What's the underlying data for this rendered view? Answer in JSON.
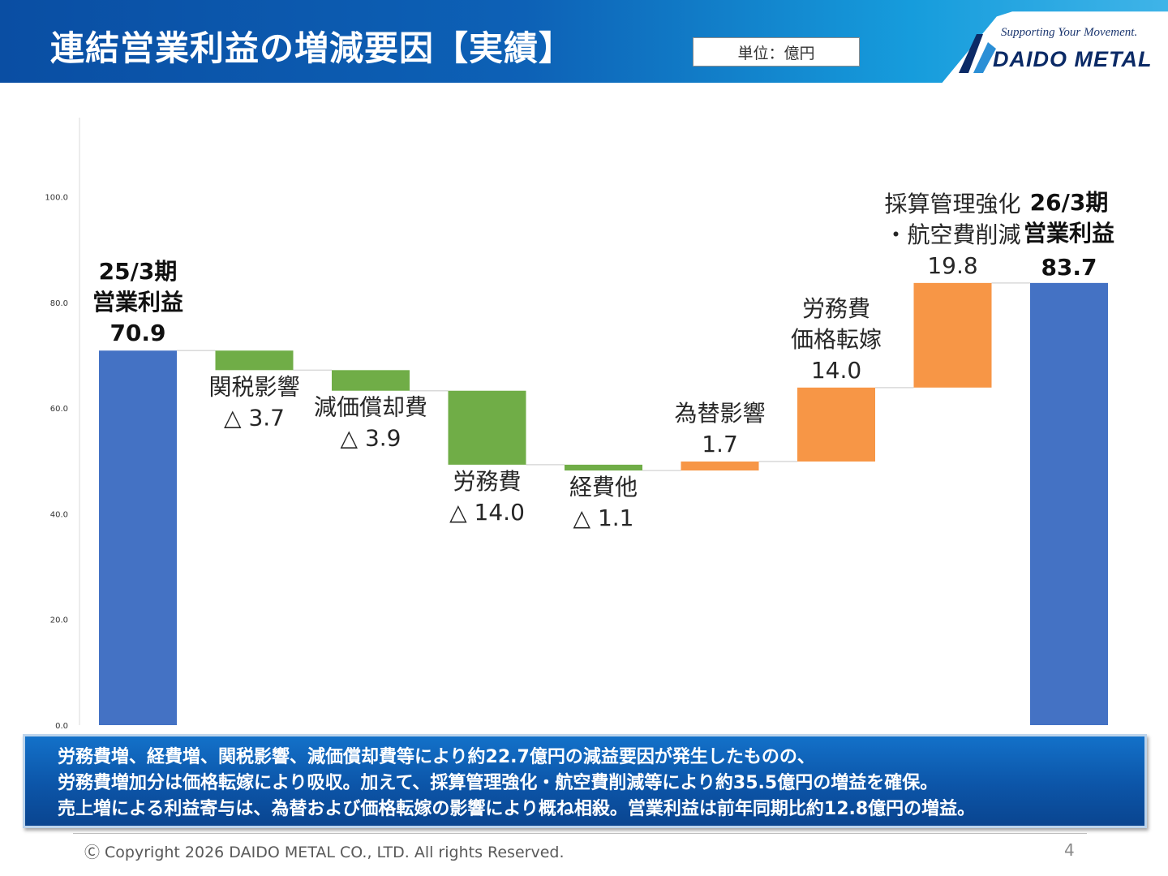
{
  "header": {
    "title": "連結営業利益の増減要因【実績】",
    "unit": "単位：億円",
    "logo_tagline": "Supporting Your Movement.",
    "logo_text": "DAIDO METAL",
    "logo_icon": "daido-metal-logo-icon"
  },
  "chart_data": {
    "type": "waterfall",
    "ylim": [
      0,
      115
    ],
    "yticks": [
      "0.0",
      "20.0",
      "40.0",
      "60.0",
      "80.0",
      "100.0"
    ],
    "colors": {
      "total": "#4472c4",
      "decrease": "#70ad47",
      "increase": "#f79646"
    },
    "steps": [
      {
        "kind": "total",
        "value": 70.9,
        "label_lines": [
          "25/3期",
          "営業利益",
          "70.9"
        ]
      },
      {
        "kind": "decrease",
        "value": -3.7,
        "label_lines": [
          "関税影響",
          "△ 3.7"
        ]
      },
      {
        "kind": "decrease",
        "value": -3.9,
        "label_lines": [
          "減価償却費",
          "△ 3.9"
        ]
      },
      {
        "kind": "decrease",
        "value": -14.0,
        "label_lines": [
          "労務費",
          "△ 14.0"
        ]
      },
      {
        "kind": "decrease",
        "value": -1.1,
        "label_lines": [
          "経費他",
          "△ 1.1"
        ]
      },
      {
        "kind": "increase",
        "value": 1.7,
        "label_lines": [
          "為替影響",
          "1.7"
        ]
      },
      {
        "kind": "increase",
        "value": 14.0,
        "label_lines": [
          "労務費",
          "価格転嫁",
          "14.0"
        ]
      },
      {
        "kind": "increase",
        "value": 19.8,
        "label_lines": [
          "採算管理強化",
          "・航空費削減",
          "19.8"
        ]
      },
      {
        "kind": "total",
        "value": 83.7,
        "label_lines": [
          "26/3期",
          "営業利益"
        ],
        "value_label": "83.7"
      }
    ]
  },
  "summary": {
    "lines": [
      "労務費増、経費増、関税影響、減価償却費等により約22.7億円の減益要因が発生したものの、",
      "労務費増加分は価格転嫁により吸収。加えて、採算管理強化・航空費削減等により約35.5億円の増益を確保。",
      "売上増による利益寄与は、為替および価格転嫁の影響により概ね相殺。営業利益は前年同期比約12.8億円の増益。"
    ]
  },
  "footer": {
    "copyright": "Ⓒ Copyright 2026 DAIDO METAL CO., LTD. All rights Reserved.",
    "page": "4"
  }
}
